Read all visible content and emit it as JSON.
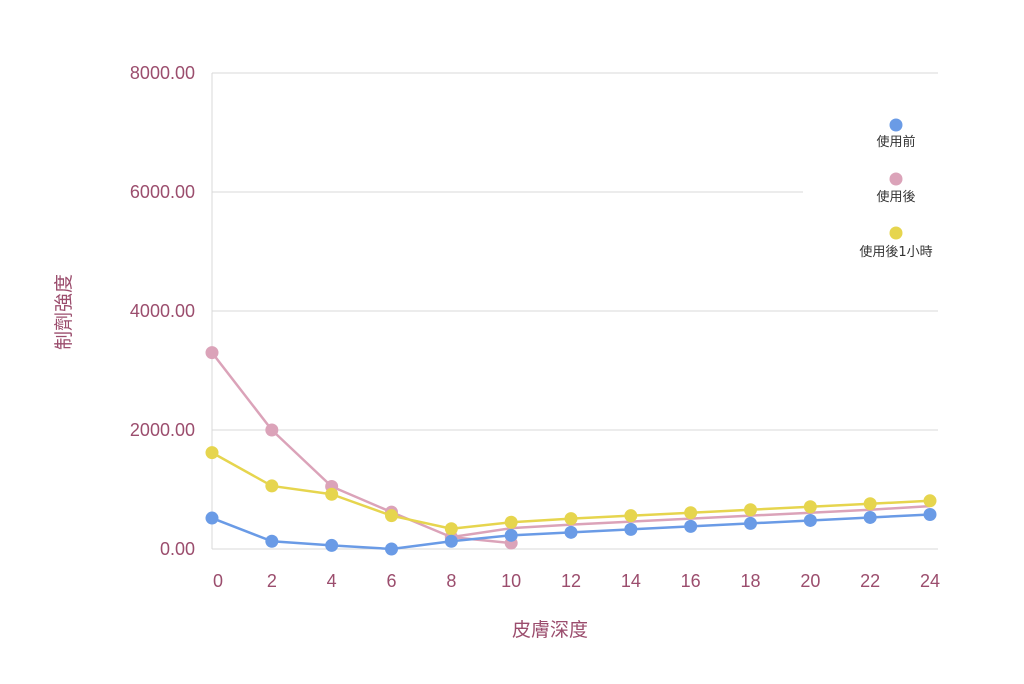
{
  "chart_data": {
    "type": "line",
    "title": "",
    "xlabel": "皮膚深度",
    "ylabel": "制劑強度",
    "x": [
      0,
      2,
      4,
      6,
      8,
      10,
      12,
      14,
      16,
      18,
      20,
      22,
      24
    ],
    "x_ticks": [
      "0",
      "2",
      "4",
      "6",
      "8",
      "10",
      "12",
      "14",
      "16",
      "18",
      "20",
      "22",
      "24"
    ],
    "y_ticks": [
      "0.00",
      "2000.00",
      "4000.00",
      "6000.00",
      "8000.00"
    ],
    "ylim": [
      0,
      8000
    ],
    "xlim": [
      0,
      24
    ],
    "grid": true,
    "legend_position": "right",
    "series": [
      {
        "name": "使用前",
        "color": "#6a9be6",
        "values": [
          520,
          130,
          60,
          0,
          130,
          230,
          280,
          330,
          380,
          430,
          480,
          530,
          580
        ]
      },
      {
        "name": "使用後",
        "color": "#dba3b9",
        "values": [
          3300,
          2000,
          1050,
          620,
          200,
          100,
          null,
          null,
          null,
          null,
          null,
          null,
          null
        ],
        "tail_values": [
          null,
          null,
          null,
          null,
          200,
          350,
          410,
          460,
          510,
          560,
          610,
          660,
          720
        ]
      },
      {
        "name": "使用後1小時",
        "color": "#e6d54e",
        "values": [
          1620,
          1060,
          920,
          560,
          340,
          450,
          510,
          560,
          610,
          660,
          710,
          760,
          810
        ]
      }
    ]
  }
}
